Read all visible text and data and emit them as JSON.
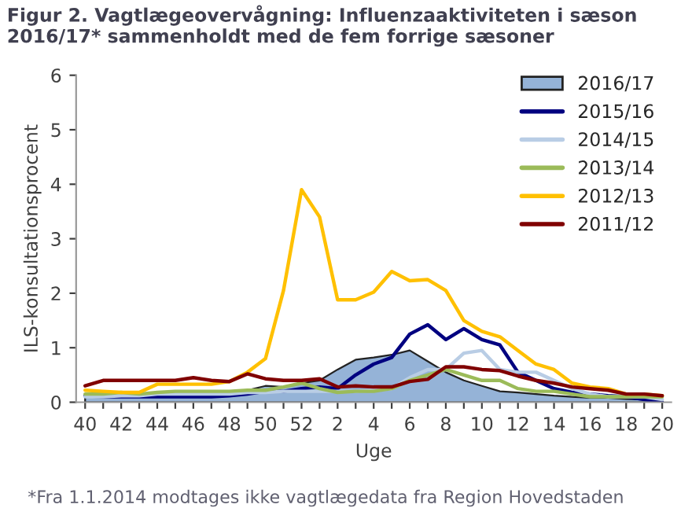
{
  "chart_data": {
    "type": "line",
    "title": "Figur 2. Vagtlægeovervågning: Influenzaaktiviteten i sæson 2016/17* sammenholdt med de fem forrige sæsoner",
    "xlabel": "Uge",
    "ylabel": "ILS-konsultationsprocent",
    "categories": [
      "40",
      null,
      "42",
      null,
      "44",
      null,
      "46",
      null,
      "48",
      null,
      "50",
      null,
      "52",
      null,
      "2",
      null,
      "4",
      null,
      "6",
      null,
      "8",
      null,
      "10",
      null,
      "12",
      null,
      "14",
      null,
      "16",
      null,
      "18",
      null,
      "20"
    ],
    "ylim": [
      0,
      6
    ],
    "yticks": [
      0,
      1,
      2,
      3,
      4,
      5,
      6
    ],
    "grid": false,
    "legend": "top right",
    "series": [
      {
        "name": "2016/17",
        "type": "area",
        "color": "#95b3d7",
        "values": [
          0.12,
          0.12,
          0.12,
          0.15,
          0.15,
          0.18,
          0.18,
          0.18,
          0.2,
          0.22,
          0.3,
          0.28,
          0.35,
          0.4,
          0.6,
          0.78,
          0.82,
          0.87,
          0.95,
          0.75,
          0.55,
          0.4,
          0.3,
          0.2,
          0.18,
          0.15,
          0.12,
          0.1,
          0.08,
          0.08,
          0.06,
          0.05,
          0.03
        ]
      },
      {
        "name": "2015/16",
        "color": "#000080",
        "values": [
          0.12,
          0.1,
          0.1,
          0.1,
          0.1,
          0.1,
          0.1,
          0.1,
          0.12,
          0.15,
          0.2,
          0.2,
          0.25,
          0.28,
          0.25,
          0.5,
          0.7,
          0.82,
          1.25,
          1.42,
          1.15,
          1.35,
          1.15,
          1.05,
          0.55,
          0.4,
          0.25,
          0.18,
          0.15,
          0.12,
          0.1,
          0.05,
          0.0
        ]
      },
      {
        "name": "2014/15",
        "color": "#b9cde5",
        "values": [
          0.1,
          0.1,
          0.12,
          0.12,
          0.15,
          0.15,
          0.15,
          0.15,
          0.15,
          0.18,
          0.18,
          0.2,
          0.2,
          0.2,
          0.2,
          0.2,
          0.22,
          0.25,
          0.45,
          0.6,
          0.6,
          0.9,
          0.95,
          0.6,
          0.55,
          0.55,
          0.4,
          0.25,
          0.15,
          0.1,
          0.1,
          0.1,
          0.05
        ]
      },
      {
        "name": "2013/14",
        "color": "#9bbb59",
        "values": [
          0.15,
          0.15,
          0.18,
          0.15,
          0.18,
          0.2,
          0.2,
          0.2,
          0.2,
          0.22,
          0.22,
          0.28,
          0.35,
          0.25,
          0.18,
          0.2,
          0.2,
          0.25,
          0.4,
          0.5,
          0.6,
          0.5,
          0.4,
          0.4,
          0.25,
          0.2,
          0.2,
          0.15,
          0.1,
          0.1,
          0.1,
          0.1,
          0.1
        ]
      },
      {
        "name": "2012/13",
        "color": "#ffc000",
        "values": [
          0.22,
          0.2,
          0.18,
          0.18,
          0.33,
          0.33,
          0.33,
          0.33,
          0.38,
          0.55,
          0.8,
          2.05,
          3.9,
          3.4,
          1.88,
          1.88,
          2.02,
          2.4,
          2.23,
          2.25,
          2.05,
          1.5,
          1.3,
          1.2,
          0.95,
          0.7,
          0.6,
          0.35,
          0.28,
          0.25,
          0.15,
          0.15,
          0.12
        ]
      },
      {
        "name": "2011/12",
        "color": "#800000",
        "values": [
          0.3,
          0.4,
          0.4,
          0.4,
          0.4,
          0.4,
          0.45,
          0.4,
          0.38,
          0.52,
          0.43,
          0.4,
          0.4,
          0.43,
          0.28,
          0.3,
          0.28,
          0.28,
          0.38,
          0.42,
          0.65,
          0.65,
          0.6,
          0.58,
          0.48,
          0.4,
          0.35,
          0.28,
          0.25,
          0.22,
          0.15,
          0.15,
          0.12
        ]
      }
    ],
    "annotations": [
      "*Fra 1.1.2014 modtages ikke vagtlægedata fra Region Hovedstaden"
    ]
  }
}
